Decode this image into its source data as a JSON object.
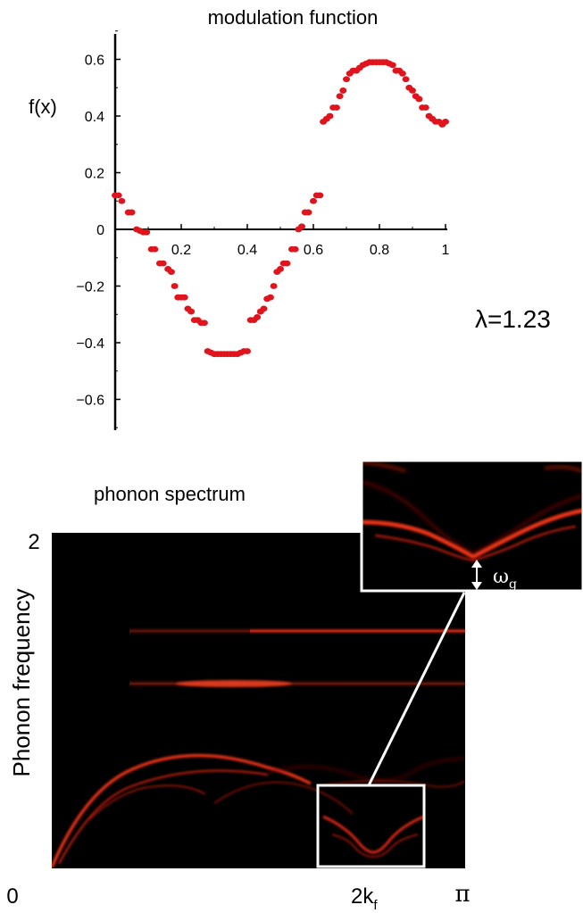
{
  "chart_data": [
    {
      "type": "scatter",
      "title": "modulation function",
      "ylabel": "f(x)",
      "xlabel": "",
      "xlim": [
        0,
        1
      ],
      "ylim": [
        -0.7,
        0.72
      ],
      "xticks": [
        "0.2",
        "0.4",
        "0.6",
        "0.8",
        "1"
      ],
      "yticks": [
        "0.6",
        "0.4",
        "0.2",
        "0",
        "−0.2",
        "−0.4",
        "−0.6"
      ],
      "ytick_values": [
        0.6,
        0.4,
        0.2,
        0,
        -0.2,
        -0.4,
        -0.6
      ],
      "xtick_values": [
        0.2,
        0.4,
        0.6,
        0.8,
        1.0
      ],
      "grid": false,
      "marker_color": "#e0141c",
      "series": [
        {
          "x": [
            0.0,
            0.01,
            0.02,
            0.04,
            0.05,
            0.065,
            0.075,
            0.085,
            0.095,
            0.11,
            0.12,
            0.135,
            0.145,
            0.16,
            0.17,
            0.18,
            0.19,
            0.2,
            0.21,
            0.22,
            0.23,
            0.24,
            0.25,
            0.26,
            0.27,
            0.28,
            0.29,
            0.3,
            0.31,
            0.32,
            0.33,
            0.34,
            0.35,
            0.36,
            0.37,
            0.38,
            0.39,
            0.4,
            0.41,
            0.42,
            0.43,
            0.44,
            0.45,
            0.46,
            0.47,
            0.48,
            0.49,
            0.5,
            0.51,
            0.52,
            0.535,
            0.545,
            0.555,
            0.565,
            0.575,
            0.585,
            0.6,
            0.61,
            0.62,
            0.63,
            0.64,
            0.65,
            0.66,
            0.67,
            0.68,
            0.69,
            0.7,
            0.71,
            0.72,
            0.73,
            0.74,
            0.75,
            0.76,
            0.77,
            0.78,
            0.79,
            0.8,
            0.81,
            0.82,
            0.83,
            0.84,
            0.85,
            0.86,
            0.87,
            0.88,
            0.89,
            0.9,
            0.91,
            0.92,
            0.93,
            0.94,
            0.95,
            0.96,
            0.97,
            0.98,
            0.99,
            1.0
          ],
          "y": [
            0.12,
            0.12,
            0.1,
            0.06,
            0.06,
            0.0,
            -0.005,
            -0.01,
            -0.01,
            -0.07,
            -0.07,
            -0.12,
            -0.12,
            -0.14,
            -0.15,
            -0.2,
            -0.24,
            -0.24,
            -0.24,
            -0.28,
            -0.29,
            -0.32,
            -0.32,
            -0.33,
            -0.33,
            -0.43,
            -0.435,
            -0.44,
            -0.44,
            -0.44,
            -0.44,
            -0.44,
            -0.44,
            -0.44,
            -0.44,
            -0.435,
            -0.43,
            -0.43,
            -0.32,
            -0.32,
            -0.31,
            -0.29,
            -0.28,
            -0.245,
            -0.24,
            -0.2,
            -0.15,
            -0.14,
            -0.12,
            -0.12,
            -0.07,
            -0.07,
            0.0,
            0.01,
            0.06,
            0.06,
            0.1,
            0.12,
            0.12,
            0.38,
            0.39,
            0.4,
            0.43,
            0.43,
            0.47,
            0.49,
            0.53,
            0.55,
            0.56,
            0.56,
            0.57,
            0.58,
            0.585,
            0.59,
            0.59,
            0.59,
            0.59,
            0.59,
            0.59,
            0.585,
            0.58,
            0.56,
            0.56,
            0.55,
            0.53,
            0.5,
            0.49,
            0.47,
            0.46,
            0.43,
            0.43,
            0.4,
            0.39,
            0.38,
            0.38,
            0.37,
            0.38
          ]
        }
      ],
      "annotations": [
        "λ=1.23"
      ]
    },
    {
      "type": "heatmap",
      "title": "phonon spectrum",
      "ylabel": "Phonon frequency",
      "xlabel": "",
      "xticks": [
        "0",
        "2k",
        "π"
      ],
      "xtick_sub": "f",
      "yticks": [
        "2"
      ],
      "background": "#000000",
      "colormap": "black-red-yellow",
      "inset_label": "ω",
      "inset_label_sub": "g"
    }
  ]
}
